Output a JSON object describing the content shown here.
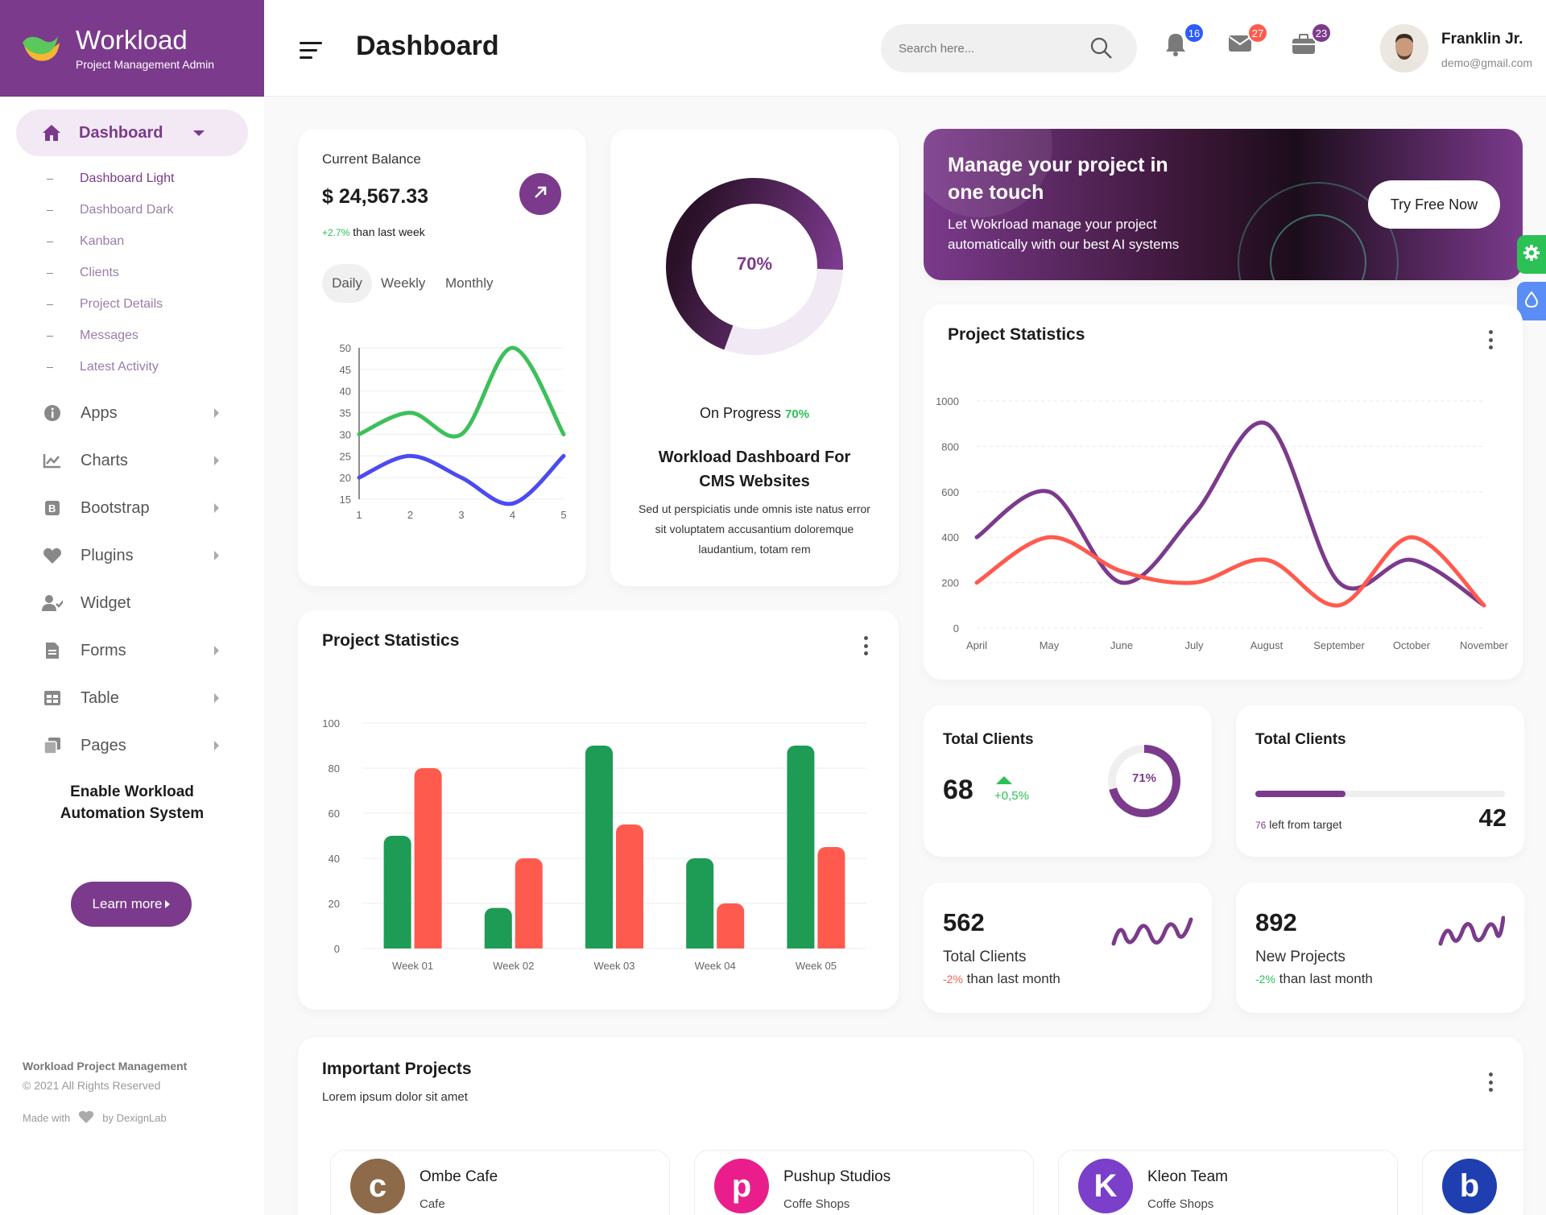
{
  "brand": {
    "title": "Workload",
    "subtitle": "Project Management Admin"
  },
  "sidebar": {
    "active": {
      "label": "Dashboard"
    },
    "submenu": [
      "Dashboard Light",
      "Dashboard Dark",
      "Kanban",
      "Clients",
      "Project Details",
      "Messages",
      "Latest Activity"
    ],
    "items": [
      {
        "label": "Apps",
        "icon": "info-icon"
      },
      {
        "label": "Charts",
        "icon": "chart-line-icon"
      },
      {
        "label": "Bootstrap",
        "icon": "bootstrap-icon"
      },
      {
        "label": "Plugins",
        "icon": "heart-icon"
      },
      {
        "label": "Widget",
        "icon": "user-check-icon"
      },
      {
        "label": "Forms",
        "icon": "file-icon"
      },
      {
        "label": "Table",
        "icon": "table-icon"
      },
      {
        "label": "Pages",
        "icon": "copy-icon"
      }
    ],
    "promo": {
      "title": "Enable Workload Automation System",
      "button": "Learn more"
    },
    "footer": {
      "line1": "Workload Project Management",
      "line2": "© 2021 All Rights Reserved",
      "made_with": "Made with",
      "by": "by DexignLab"
    }
  },
  "header": {
    "title": "Dashboard",
    "search_placeholder": "Search here...",
    "badges": {
      "notifications": "16",
      "messages": "27",
      "tasks": "23"
    },
    "user": {
      "name": "Franklin Jr.",
      "email": "demo@gmail.com"
    }
  },
  "balance": {
    "label": "Current Balance",
    "amount": "$ 24,567.33",
    "change": "+2.7%",
    "change_text": "than last week",
    "tabs": [
      "Daily",
      "Weekly",
      "Monthly"
    ],
    "active_tab": "Daily"
  },
  "progress": {
    "percent_label": "70%",
    "percent": 70,
    "status_label": "On Progress",
    "status_value": "70%",
    "title": "Workload Dashboard For CMS Websites",
    "desc": "Sed ut perspiciatis unde omnis iste natus error sit voluptatem accusantium doloremque laudantium, totam rem"
  },
  "banner": {
    "title": "Manage your project in one touch",
    "text": "Let Wokrload manage your project automatically with our best AI systems",
    "button": "Try Free Now"
  },
  "project_stats_bar": {
    "title": "Project Statistics"
  },
  "project_stats_line": {
    "title": "Project Statistics"
  },
  "clients_donut": {
    "title": "Total Clients",
    "value": "68",
    "change": "+0,5%",
    "percent_label": "71%",
    "percent": 71
  },
  "clients_target": {
    "title": "Total Clients",
    "left_value": "76",
    "left_text": "left from target",
    "value": "42",
    "progress": 0.36
  },
  "stat_clients": {
    "value": "562",
    "label": "Total Clients",
    "change": "-2%",
    "change_text": "than last month"
  },
  "stat_projects": {
    "value": "892",
    "label": "New Projects",
    "change": "-2%",
    "change_text": "than last month"
  },
  "important": {
    "title": "Important Projects",
    "subtitle": "Lorem ipsum dolor sit amet",
    "projects": [
      {
        "name": "Ombe Cafe",
        "type": "Cafe",
        "letter": "c",
        "color": "#8c6a4a"
      },
      {
        "name": "Pushup Studios",
        "type": "Coffe Shops",
        "letter": "p",
        "color": "#e91e8c"
      },
      {
        "name": "Kleon Team",
        "type": "Coffe Shops",
        "letter": "K",
        "color": "#7b3fc9"
      },
      {
        "name": "",
        "type": "",
        "letter": "b",
        "color": "#1f3fb0"
      }
    ]
  },
  "colors": {
    "brand": "#7b3a8c",
    "green": "#2bc155",
    "red": "#ff5a4e",
    "blue": "#4b4bf0"
  },
  "chart_data": [
    {
      "type": "line",
      "x": [
        1,
        2,
        3,
        4,
        5
      ],
      "series": [
        {
          "values": [
            30,
            35,
            30,
            50,
            30
          ],
          "color": "#3cc05a"
        },
        {
          "values": [
            20,
            25,
            20,
            14,
            25
          ],
          "color": "#4b4bf0"
        }
      ],
      "ylim": [
        15,
        50
      ],
      "yticks": [
        15,
        20,
        25,
        30,
        35,
        40,
        45,
        50
      ],
      "xticks": [
        1,
        2,
        3,
        4,
        5
      ]
    },
    {
      "type": "bar",
      "title": "Project Statistics",
      "categories": [
        "Week 01",
        "Week 02",
        "Week 03",
        "Week 04",
        "Week 05"
      ],
      "series": [
        {
          "values": [
            50,
            18,
            90,
            40,
            90
          ],
          "color": "#1e9b55"
        },
        {
          "values": [
            80,
            40,
            55,
            20,
            45
          ],
          "color": "#ff5a4e"
        }
      ],
      "ylim": [
        0,
        100
      ],
      "yticks": [
        0,
        20,
        40,
        60,
        80,
        100
      ]
    },
    {
      "type": "line",
      "title": "Project Statistics",
      "categories": [
        "April",
        "May",
        "June",
        "July",
        "August",
        "September",
        "October",
        "November"
      ],
      "series": [
        {
          "values": [
            400,
            600,
            200,
            500,
            900,
            200,
            300,
            100
          ],
          "color": "#7b3a8c"
        },
        {
          "values": [
            200,
            400,
            250,
            200,
            300,
            100,
            400,
            100
          ],
          "color": "#ff5a4e"
        }
      ],
      "ylim": [
        0,
        1000
      ],
      "yticks": [
        0,
        200,
        400,
        600,
        800,
        1000
      ]
    }
  ]
}
